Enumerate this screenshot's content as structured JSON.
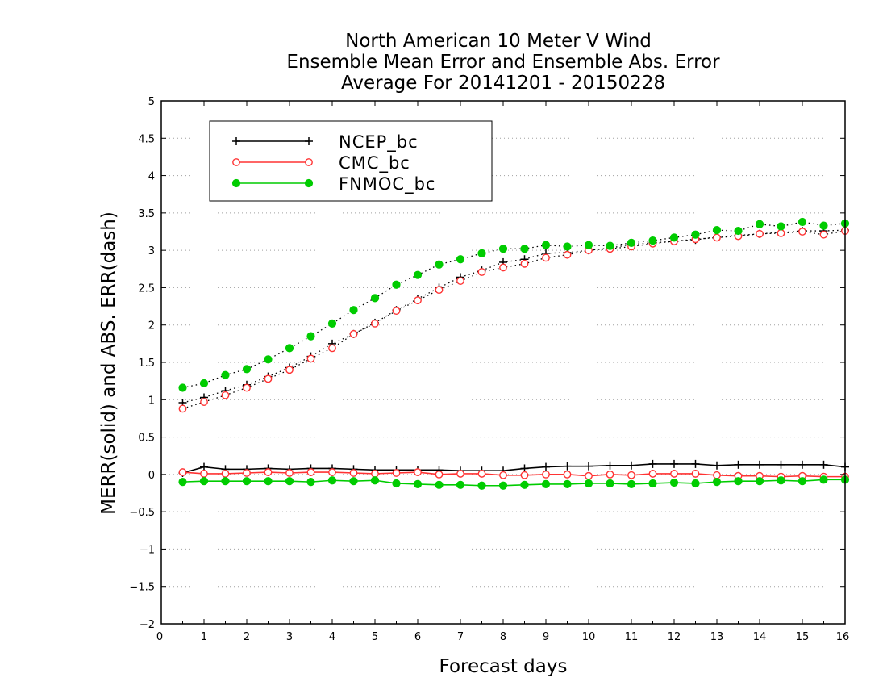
{
  "chart_data": {
    "type": "line",
    "title": [
      "North American 10 Meter V Wind",
      "Ensemble Mean Error and Ensemble Abs. Error",
      "Average For 20141201 - 20150228"
    ],
    "xlabel": "Forecast days",
    "ylabel": "MERR(solid) and ABS. ERR(dash)",
    "xlim": [
      0,
      16
    ],
    "ylim": [
      -2,
      5
    ],
    "xticks": [
      0,
      1,
      2,
      3,
      4,
      5,
      6,
      7,
      8,
      9,
      10,
      11,
      12,
      13,
      14,
      15,
      16
    ],
    "yticks": [
      -2,
      -1.5,
      -1,
      -0.5,
      0,
      0.5,
      1,
      1.5,
      2,
      2.5,
      3,
      3.5,
      4,
      4.5,
      5
    ],
    "grid": "horizontal dotted",
    "legend_position": "top-left",
    "x": [
      0.5,
      1,
      1.5,
      2,
      2.5,
      3,
      3.5,
      4,
      4.5,
      5,
      5.5,
      6,
      6.5,
      7,
      7.5,
      8,
      8.5,
      9,
      9.5,
      10,
      10.5,
      11,
      11.5,
      12,
      12.5,
      13,
      13.5,
      14,
      14.5,
      15,
      15.5,
      16
    ],
    "series": [
      {
        "name": "NCEP_bc",
        "color": "#000000",
        "marker": "plus",
        "merr": [
          0.02,
          0.1,
          0.07,
          0.07,
          0.08,
          0.07,
          0.08,
          0.08,
          0.07,
          0.06,
          0.06,
          0.06,
          0.06,
          0.05,
          0.05,
          0.05,
          0.08,
          0.1,
          0.11,
          0.11,
          0.12,
          0.12,
          0.14,
          0.14,
          0.14,
          0.12,
          0.13,
          0.13,
          0.13,
          0.13,
          0.13,
          0.1
        ],
        "abs_err": [
          0.96,
          1.03,
          1.12,
          1.2,
          1.31,
          1.43,
          1.58,
          1.75,
          1.88,
          2.03,
          2.2,
          2.35,
          2.5,
          2.64,
          2.73,
          2.84,
          2.88,
          2.96,
          2.97,
          3.0,
          3.03,
          3.08,
          3.1,
          3.12,
          3.14,
          3.18,
          3.2,
          3.22,
          3.24,
          3.26,
          3.26,
          3.27
        ]
      },
      {
        "name": "CMC_bc",
        "color": "#ff3333",
        "marker": "open-circle",
        "merr": [
          0.03,
          0.01,
          0.01,
          0.02,
          0.03,
          0.02,
          0.03,
          0.03,
          0.02,
          0.01,
          0.02,
          0.03,
          0.0,
          0.01,
          0.01,
          -0.01,
          -0.01,
          0.0,
          0.0,
          -0.02,
          0.0,
          -0.01,
          0.01,
          0.01,
          0.01,
          -0.01,
          -0.02,
          -0.02,
          -0.03,
          -0.02,
          -0.03,
          -0.03
        ],
        "abs_err": [
          0.88,
          0.97,
          1.06,
          1.16,
          1.28,
          1.4,
          1.55,
          1.69,
          1.88,
          2.02,
          2.19,
          2.33,
          2.47,
          2.59,
          2.71,
          2.77,
          2.82,
          2.9,
          2.94,
          3.0,
          3.02,
          3.05,
          3.09,
          3.12,
          3.15,
          3.17,
          3.19,
          3.22,
          3.23,
          3.25,
          3.21,
          3.26
        ]
      },
      {
        "name": "FNMOC_bc",
        "color": "#00cc00",
        "marker": "filled-circle",
        "merr": [
          -0.1,
          -0.09,
          -0.09,
          -0.09,
          -0.09,
          -0.09,
          -0.1,
          -0.08,
          -0.09,
          -0.08,
          -0.12,
          -0.13,
          -0.14,
          -0.14,
          -0.15,
          -0.15,
          -0.14,
          -0.13,
          -0.13,
          -0.12,
          -0.12,
          -0.13,
          -0.12,
          -0.11,
          -0.12,
          -0.1,
          -0.09,
          -0.09,
          -0.08,
          -0.09,
          -0.07,
          -0.07
        ],
        "abs_err": [
          1.16,
          1.22,
          1.33,
          1.41,
          1.54,
          1.69,
          1.85,
          2.02,
          2.2,
          2.36,
          2.54,
          2.67,
          2.81,
          2.88,
          2.96,
          3.02,
          3.02,
          3.07,
          3.05,
          3.07,
          3.06,
          3.1,
          3.13,
          3.17,
          3.21,
          3.27,
          3.26,
          3.35,
          3.32,
          3.38,
          3.33,
          3.36
        ]
      }
    ]
  }
}
